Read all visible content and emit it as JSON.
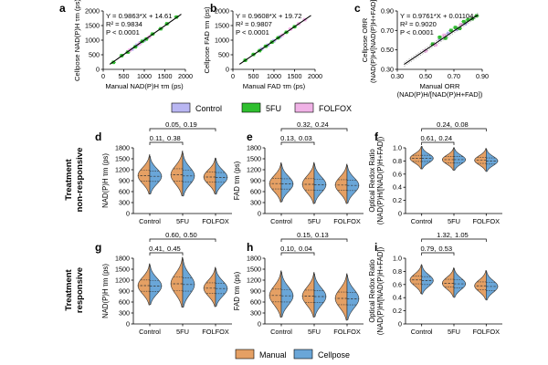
{
  "colors": {
    "control": "#b9b6f2",
    "fu": "#2fbf2f",
    "folfox": "#f0b2e6",
    "manual": "#e5a064",
    "cellpose": "#6aa6d8",
    "text_manual": "#d9822b",
    "text_cellpose": "#3f88c5"
  },
  "legend_top": [
    "Control",
    "5FU",
    "FOLFOX"
  ],
  "legend_bottom": [
    "Manual",
    "Cellpose"
  ],
  "row_labels": {
    "top": [
      "Treatment",
      "non-responsive"
    ],
    "bottom": [
      "Treatment",
      "responsive"
    ]
  },
  "chart_data": [
    {
      "panel": "a",
      "type": "scatter",
      "xlabel": "Manual NAD(P)H τm (ps)",
      "ylabel": "Cellpose NAD(P)H τm (ps)",
      "xlim": [
        0,
        2000
      ],
      "ylim": [
        0,
        2000
      ],
      "xticks": [
        0,
        500,
        1000,
        1500,
        2000
      ],
      "yticks": [
        0,
        500,
        1000,
        1500,
        2000
      ],
      "stats": [
        "Y = 0.9863*X + 14.61",
        "R² = 0.9834",
        "P < 0.0001"
      ],
      "fit": {
        "slope": 0.9863,
        "intercept": 14.61
      },
      "points": [
        {
          "g": "control",
          "x": 700,
          "y": 690
        },
        {
          "g": "control",
          "x": 820,
          "y": 830
        },
        {
          "g": "control",
          "x": 900,
          "y": 910
        },
        {
          "g": "control",
          "x": 1000,
          "y": 990
        },
        {
          "g": "fu",
          "x": 250,
          "y": 240
        },
        {
          "g": "fu",
          "x": 450,
          "y": 470
        },
        {
          "g": "fu",
          "x": 600,
          "y": 590
        },
        {
          "g": "fu",
          "x": 780,
          "y": 770
        },
        {
          "g": "fu",
          "x": 950,
          "y": 960
        },
        {
          "g": "fu",
          "x": 1050,
          "y": 1040
        },
        {
          "g": "fu",
          "x": 1200,
          "y": 1210
        },
        {
          "g": "fu",
          "x": 1400,
          "y": 1390
        },
        {
          "g": "fu",
          "x": 1550,
          "y": 1560
        },
        {
          "g": "fu",
          "x": 1780,
          "y": 1790
        },
        {
          "g": "folfox",
          "x": 650,
          "y": 660
        },
        {
          "g": "folfox",
          "x": 880,
          "y": 870
        },
        {
          "g": "folfox",
          "x": 1120,
          "y": 1110
        }
      ]
    },
    {
      "panel": "b",
      "type": "scatter",
      "xlabel": "Manual FAD τm (ps)",
      "ylabel": "Cellpose FAD τm (ps)",
      "xlim": [
        0,
        2000
      ],
      "ylim": [
        0,
        2000
      ],
      "xticks": [
        0,
        500,
        1000,
        1500,
        2000
      ],
      "yticks": [
        0,
        500,
        1000,
        1500,
        2000
      ],
      "stats": [
        "Y = 0.9608*X + 19.72",
        "R² = 0.9807",
        "P < 0.0001"
      ],
      "fit": {
        "slope": 0.9608,
        "intercept": 19.72
      },
      "points": [
        {
          "g": "control",
          "x": 700,
          "y": 700
        },
        {
          "g": "control",
          "x": 850,
          "y": 830
        },
        {
          "g": "control",
          "x": 1000,
          "y": 980
        },
        {
          "g": "control",
          "x": 1150,
          "y": 1120
        },
        {
          "g": "fu",
          "x": 300,
          "y": 310
        },
        {
          "g": "fu",
          "x": 500,
          "y": 510
        },
        {
          "g": "fu",
          "x": 650,
          "y": 640
        },
        {
          "g": "fu",
          "x": 800,
          "y": 790
        },
        {
          "g": "fu",
          "x": 950,
          "y": 930
        },
        {
          "g": "fu",
          "x": 1100,
          "y": 1080
        },
        {
          "g": "fu",
          "x": 1300,
          "y": 1270
        },
        {
          "g": "fu",
          "x": 1500,
          "y": 1460
        },
        {
          "g": "folfox",
          "x": 1200,
          "y": 1170
        },
        {
          "g": "folfox",
          "x": 1400,
          "y": 1380
        },
        {
          "g": "folfox",
          "x": 1600,
          "y": 1560
        },
        {
          "g": "folfox",
          "x": 1750,
          "y": 1700
        }
      ]
    },
    {
      "panel": "c",
      "type": "scatter",
      "xlabel": "Manual ORR",
      "xlabel2": "(NAD(P)H/[NAD(P)H+FAD])",
      "ylabel": "Cellpose ORR",
      "ylabel2": "(NAD(P)H/[NAD(P)H+FAD])",
      "xlim": [
        0.3,
        0.9
      ],
      "ylim": [
        0.3,
        0.9
      ],
      "xticks": [
        0.3,
        0.5,
        0.7,
        0.9
      ],
      "yticks": [
        0.3,
        0.5,
        0.7,
        0.9
      ],
      "xtick_labels": [
        "0.30",
        "0.50",
        "0.70",
        "0.90"
      ],
      "ytick_labels": [
        "0.30",
        "0.50",
        "0.70",
        "0.90"
      ],
      "stats": [
        "Y = 0.9761*X + 0.01104",
        "R² = 0.9020",
        "P < 0.0001"
      ],
      "fit": {
        "slope": 0.9761,
        "intercept": 0.01104
      },
      "points": [
        {
          "g": "control",
          "x": 0.6,
          "y": 0.61
        },
        {
          "g": "control",
          "x": 0.66,
          "y": 0.67
        },
        {
          "g": "control",
          "x": 0.72,
          "y": 0.71
        },
        {
          "g": "control",
          "x": 0.78,
          "y": 0.77
        },
        {
          "g": "fu",
          "x": 0.55,
          "y": 0.56
        },
        {
          "g": "fu",
          "x": 0.6,
          "y": 0.63
        },
        {
          "g": "fu",
          "x": 0.64,
          "y": 0.62
        },
        {
          "g": "fu",
          "x": 0.68,
          "y": 0.7
        },
        {
          "g": "fu",
          "x": 0.71,
          "y": 0.73
        },
        {
          "g": "fu",
          "x": 0.74,
          "y": 0.72
        },
        {
          "g": "fu",
          "x": 0.77,
          "y": 0.79
        },
        {
          "g": "fu",
          "x": 0.8,
          "y": 0.81
        },
        {
          "g": "fu",
          "x": 0.83,
          "y": 0.82
        },
        {
          "g": "fu",
          "x": 0.86,
          "y": 0.85
        },
        {
          "g": "folfox",
          "x": 0.5,
          "y": 0.49
        },
        {
          "g": "folfox",
          "x": 0.57,
          "y": 0.55
        },
        {
          "g": "folfox",
          "x": 0.63,
          "y": 0.65
        },
        {
          "g": "folfox",
          "x": 0.75,
          "y": 0.76
        }
      ]
    },
    {
      "panel": "d",
      "type": "split-violin",
      "ylabel": "NAD(P)H τm (ps)",
      "categories": [
        "Control",
        "5FU",
        "FOLFOX"
      ],
      "ylim": [
        0,
        1800
      ],
      "yticks": [
        0,
        300,
        600,
        900,
        1200,
        1500,
        1800
      ],
      "manual": {
        "median": [
          1040,
          1060,
          1000
        ],
        "spread": [
          220,
          250,
          200
        ]
      },
      "cellpose": {
        "median": [
          1020,
          1030,
          990
        ],
        "spread": [
          210,
          240,
          200
        ]
      },
      "brackets": [
        {
          "from": 0,
          "to": 1,
          "level": 0,
          "p_manual": "0.11",
          "p_cellpose": "0.38"
        },
        {
          "from": 0,
          "to": 2,
          "level": 1,
          "p_manual": "0.05",
          "p_cellpose": "0.19"
        }
      ]
    },
    {
      "panel": "e",
      "type": "split-violin",
      "ylabel": "FAD τm (ps)",
      "categories": [
        "Control",
        "5FU",
        "FOLFOX"
      ],
      "ylim": [
        0,
        1800
      ],
      "yticks": [
        0,
        300,
        600,
        900,
        1200,
        1500,
        1800
      ],
      "manual": {
        "median": [
          820,
          800,
          780
        ],
        "spread": [
          220,
          230,
          220
        ]
      },
      "cellpose": {
        "median": [
          810,
          790,
          770
        ],
        "spread": [
          210,
          220,
          210
        ]
      },
      "brackets": [
        {
          "from": 0,
          "to": 1,
          "level": 0,
          "p_manual": "0.13",
          "p_cellpose": "0.03"
        },
        {
          "from": 0,
          "to": 2,
          "level": 1,
          "p_manual": "0.32",
          "p_cellpose": "0.24"
        }
      ]
    },
    {
      "panel": "f",
      "type": "split-violin",
      "ylabel": "Optical Redox Ratio",
      "ylabel2": "(NAD(P)H/[NAD(P)H+FAD])",
      "categories": [
        "Control",
        "5FU",
        "FOLFOX"
      ],
      "ylim": [
        0,
        1.0
      ],
      "yticks": [
        0,
        0.2,
        0.4,
        0.6,
        0.8,
        1.0
      ],
      "ytick_labels": [
        "0",
        "0.2",
        "0.4",
        "0.6",
        "0.8",
        "1.0"
      ],
      "manual": {
        "median": [
          0.84,
          0.82,
          0.81
        ],
        "spread": [
          0.07,
          0.07,
          0.07
        ]
      },
      "cellpose": {
        "median": [
          0.84,
          0.82,
          0.8
        ],
        "spread": [
          0.07,
          0.07,
          0.07
        ]
      },
      "brackets": [
        {
          "from": 0,
          "to": 1,
          "level": 0,
          "p_manual": "0.61",
          "p_cellpose": "0.24"
        },
        {
          "from": 0,
          "to": 2,
          "level": 1,
          "p_manual": "0.24",
          "p_cellpose": "0.08"
        }
      ]
    },
    {
      "panel": "g",
      "type": "split-violin",
      "ylabel": "NAD(P)H τm (ps)",
      "categories": [
        "Control",
        "5FU",
        "FOLFOX"
      ],
      "ylim": [
        0,
        1800
      ],
      "yticks": [
        0,
        300,
        600,
        900,
        1200,
        1500,
        1800
      ],
      "manual": {
        "median": [
          1050,
          1100,
          980
        ],
        "spread": [
          230,
          280,
          220
        ]
      },
      "cellpose": {
        "median": [
          1040,
          1080,
          970
        ],
        "spread": [
          220,
          270,
          210
        ]
      },
      "brackets": [
        {
          "from": 0,
          "to": 1,
          "level": 0,
          "p_manual": "0.41",
          "p_cellpose": "0.45"
        },
        {
          "from": 0,
          "to": 2,
          "level": 1,
          "p_manual": "0.60",
          "p_cellpose": "0.50"
        }
      ]
    },
    {
      "panel": "h",
      "type": "split-violin",
      "ylabel": "FAD τm (ps)",
      "categories": [
        "Control",
        "5FU",
        "FOLFOX"
      ],
      "ylim": [
        0,
        1800
      ],
      "yticks": [
        0,
        300,
        600,
        900,
        1200,
        1500,
        1800
      ],
      "manual": {
        "median": [
          780,
          760,
          700
        ],
        "spread": [
          260,
          250,
          260
        ]
      },
      "cellpose": {
        "median": [
          770,
          750,
          690
        ],
        "spread": [
          250,
          240,
          250
        ]
      },
      "brackets": [
        {
          "from": 0,
          "to": 1,
          "level": 0,
          "p_manual": "0.10",
          "p_cellpose": "0.04"
        },
        {
          "from": 0,
          "to": 2,
          "level": 1,
          "p_manual": "0.15",
          "p_cellpose": "0.13"
        }
      ]
    },
    {
      "panel": "i",
      "type": "split-violin",
      "ylabel": "Optical Redox Ratio",
      "ylabel2": "(NAD(P)H/[NAD(P)H+FAD])",
      "categories": [
        "Control",
        "5FU",
        "FOLFOX"
      ],
      "ylim": [
        0,
        1.0
      ],
      "yticks": [
        0,
        0.2,
        0.4,
        0.6,
        0.8,
        1.0
      ],
      "ytick_labels": [
        "0",
        "0.2",
        "0.4",
        "0.6",
        "0.8",
        "1.0"
      ],
      "manual": {
        "median": [
          0.67,
          0.62,
          0.58
        ],
        "spread": [
          0.09,
          0.09,
          0.09
        ]
      },
      "cellpose": {
        "median": [
          0.66,
          0.61,
          0.57
        ],
        "spread": [
          0.09,
          0.09,
          0.09
        ]
      },
      "brackets": [
        {
          "from": 0,
          "to": 1,
          "level": 0,
          "p_manual": "0.79",
          "p_cellpose": "0.53"
        },
        {
          "from": 0,
          "to": 2,
          "level": 1,
          "p_manual": "1.32",
          "p_cellpose": "1.05"
        }
      ]
    }
  ]
}
